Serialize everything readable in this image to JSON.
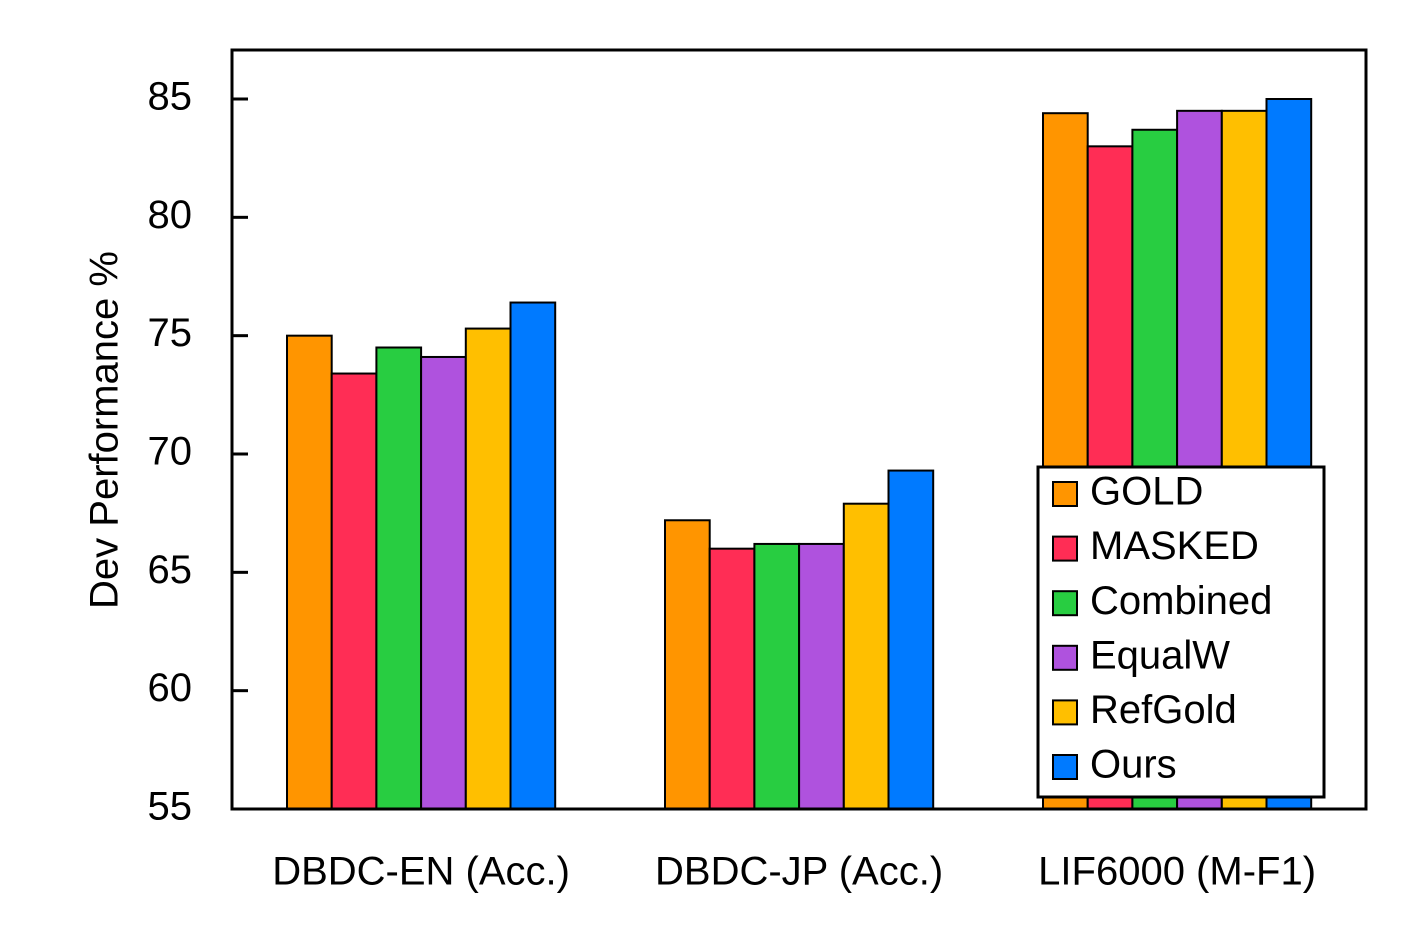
{
  "chart_data": {
    "type": "bar",
    "ylabel": "Dev Performance %",
    "xlabel": "",
    "ylim": [
      55,
      87
    ],
    "yticks": [
      55,
      60,
      65,
      70,
      75,
      80,
      85
    ],
    "categories": [
      "DBDC-EN (Acc.)",
      "DBDC-JP (Acc.)",
      "LIF6000 (M-F1)"
    ],
    "grid": false,
    "legend_position": "bottom-right",
    "series": [
      {
        "name": "GOLD",
        "color": "#FF9500",
        "values": [
          75.0,
          67.2,
          84.4
        ]
      },
      {
        "name": "MASKED",
        "color": "#FF2D55",
        "values": [
          73.4,
          66.0,
          83.0
        ]
      },
      {
        "name": "Combined",
        "color": "#28CD41",
        "values": [
          74.5,
          66.2,
          83.7
        ]
      },
      {
        "name": "EqualW",
        "color": "#AF52DE",
        "values": [
          74.1,
          66.2,
          84.5
        ]
      },
      {
        "name": "RefGold",
        "color": "#FFBF00",
        "values": [
          75.3,
          67.9,
          84.5
        ]
      },
      {
        "name": "Ours",
        "color": "#007AFF",
        "values": [
          76.4,
          69.3,
          85.0
        ]
      }
    ]
  }
}
